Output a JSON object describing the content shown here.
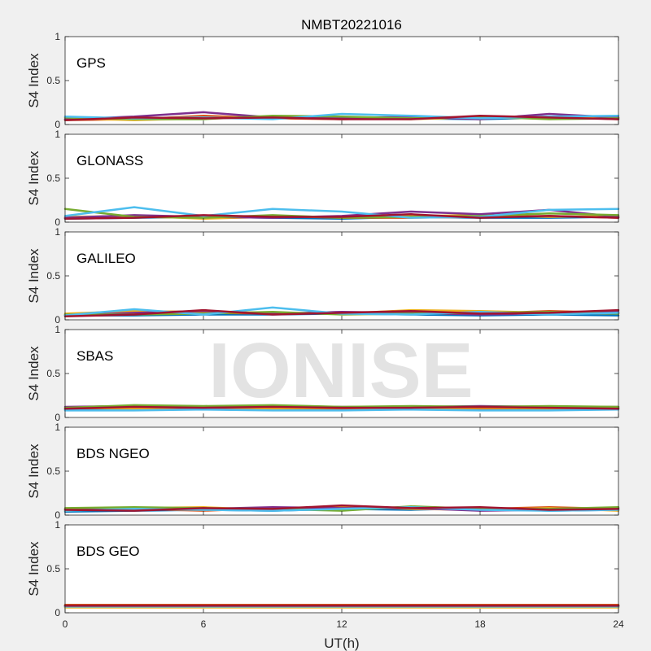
{
  "chart_data": {
    "type": "scatter",
    "title": "NMBT20221016",
    "xlabel": "UT(h)",
    "xlim": [
      0,
      24
    ],
    "xticks": [
      0,
      6,
      12,
      18,
      24
    ],
    "ylim": [
      0,
      1
    ],
    "yticks": [
      0,
      0.5,
      1
    ],
    "ylabel": "S4 Index",
    "watermark": "IONISE",
    "series_colors": [
      "#0072bd",
      "#d95319",
      "#edb120",
      "#7e2f8e",
      "#77ac30",
      "#4dbeee",
      "#a2142f"
    ],
    "panels": [
      {
        "label": "GPS",
        "ylabel": "S4 Index",
        "series": [
          {
            "x": [
              0,
              3,
              6,
              9,
              12,
              15,
              18,
              21,
              24
            ],
            "y": [
              0.06,
              0.07,
              0.08,
              0.07,
              0.08,
              0.07,
              0.06,
              0.08,
              0.07
            ]
          },
          {
            "x": [
              0,
              3,
              6,
              9,
              12,
              15,
              18,
              21,
              24
            ],
            "y": [
              0.05,
              0.06,
              0.1,
              0.07,
              0.06,
              0.08,
              0.07,
              0.09,
              0.06
            ]
          },
          {
            "x": [
              0,
              3,
              6,
              9,
              12,
              15,
              18,
              21,
              24
            ],
            "y": [
              0.07,
              0.05,
              0.07,
              0.09,
              0.07,
              0.06,
              0.08,
              0.07,
              0.08
            ]
          },
          {
            "x": [
              0,
              3,
              6,
              9,
              12,
              15,
              18,
              21,
              24
            ],
            "y": [
              0.06,
              0.09,
              0.14,
              0.08,
              0.07,
              0.09,
              0.06,
              0.12,
              0.08
            ]
          },
          {
            "x": [
              0,
              3,
              6,
              9,
              12,
              15,
              18,
              21,
              24
            ],
            "y": [
              0.08,
              0.06,
              0.06,
              0.1,
              0.09,
              0.07,
              0.09,
              0.06,
              0.07
            ]
          },
          {
            "x": [
              0,
              3,
              6,
              9,
              12,
              15,
              18,
              21,
              24
            ],
            "y": [
              0.09,
              0.07,
              0.08,
              0.06,
              0.12,
              0.1,
              0.07,
              0.09,
              0.1
            ]
          },
          {
            "x": [
              0,
              3,
              6,
              9,
              12,
              15,
              18,
              21,
              24
            ],
            "y": [
              0.05,
              0.08,
              0.07,
              0.08,
              0.06,
              0.06,
              0.1,
              0.08,
              0.06
            ]
          }
        ]
      },
      {
        "label": "GLONASS",
        "ylabel": "S4 Index",
        "series": [
          {
            "x": [
              0,
              3,
              6,
              9,
              12,
              15,
              18,
              21,
              24
            ],
            "y": [
              0.04,
              0.05,
              0.06,
              0.05,
              0.04,
              0.06,
              0.05,
              0.05,
              0.06
            ]
          },
          {
            "x": [
              0,
              3,
              6,
              9,
              12,
              15,
              18,
              21,
              24
            ],
            "y": [
              0.05,
              0.06,
              0.05,
              0.07,
              0.05,
              0.05,
              0.06,
              0.07,
              0.05
            ]
          },
          {
            "x": [
              0,
              3,
              6,
              9,
              12,
              15,
              18,
              21,
              24
            ],
            "y": [
              0.06,
              0.07,
              0.04,
              0.06,
              0.06,
              0.07,
              0.08,
              0.06,
              0.07
            ]
          },
          {
            "x": [
              0,
              3,
              6,
              9,
              12,
              15,
              18,
              21,
              24
            ],
            "y": [
              0.05,
              0.08,
              0.06,
              0.05,
              0.07,
              0.12,
              0.09,
              0.14,
              0.06
            ]
          },
          {
            "x": [
              0,
              3,
              6,
              9,
              12,
              15,
              18,
              21,
              24
            ],
            "y": [
              0.15,
              0.06,
              0.05,
              0.08,
              0.05,
              0.06,
              0.07,
              0.1,
              0.08
            ]
          },
          {
            "x": [
              0,
              3,
              6,
              9,
              12,
              15,
              18,
              21,
              24
            ],
            "y": [
              0.07,
              0.17,
              0.07,
              0.15,
              0.12,
              0.05,
              0.06,
              0.14,
              0.15
            ]
          },
          {
            "x": [
              0,
              3,
              6,
              9,
              12,
              15,
              18,
              21,
              24
            ],
            "y": [
              0.04,
              0.05,
              0.08,
              0.06,
              0.06,
              0.09,
              0.05,
              0.07,
              0.05
            ]
          }
        ]
      },
      {
        "label": "GALILEO",
        "ylabel": "S4 Index",
        "series": [
          {
            "x": [
              0,
              3,
              6,
              9,
              12,
              15,
              18,
              21,
              24
            ],
            "y": [
              0.05,
              0.05,
              0.06,
              0.06,
              0.07,
              0.06,
              0.05,
              0.06,
              0.05
            ]
          },
          {
            "x": [
              0,
              3,
              6,
              9,
              12,
              15,
              18,
              21,
              24
            ],
            "y": [
              0.06,
              0.07,
              0.08,
              0.07,
              0.08,
              0.09,
              0.07,
              0.1,
              0.08
            ]
          },
          {
            "x": [
              0,
              3,
              6,
              9,
              12,
              15,
              18,
              21,
              24
            ],
            "y": [
              0.07,
              0.1,
              0.09,
              0.08,
              0.07,
              0.11,
              0.1,
              0.08,
              0.07
            ]
          },
          {
            "x": [
              0,
              3,
              6,
              9,
              12,
              15,
              18,
              21,
              24
            ],
            "y": [
              0.05,
              0.08,
              0.1,
              0.07,
              0.09,
              0.08,
              0.06,
              0.07,
              0.09
            ]
          },
          {
            "x": [
              0,
              3,
              6,
              9,
              12,
              15,
              18,
              21,
              24
            ],
            "y": [
              0.06,
              0.06,
              0.07,
              0.09,
              0.06,
              0.07,
              0.08,
              0.09,
              0.07
            ]
          },
          {
            "x": [
              0,
              3,
              6,
              9,
              12,
              15,
              18,
              21,
              24
            ],
            "y": [
              0.05,
              0.12,
              0.06,
              0.14,
              0.07,
              0.06,
              0.09,
              0.06,
              0.08
            ]
          },
          {
            "x": [
              0,
              3,
              6,
              9,
              12,
              15,
              18,
              21,
              24
            ],
            "y": [
              0.04,
              0.06,
              0.11,
              0.06,
              0.08,
              0.1,
              0.07,
              0.08,
              0.11
            ]
          }
        ]
      },
      {
        "label": "SBAS",
        "ylabel": "S4 Index",
        "series": [
          {
            "x": [
              0,
              3,
              6,
              9,
              12,
              15,
              18,
              21,
              24
            ],
            "y": [
              0.09,
              0.1,
              0.1,
              0.09,
              0.1,
              0.09,
              0.1,
              0.09,
              0.1
            ]
          },
          {
            "x": [
              0,
              3,
              6,
              9,
              12,
              15,
              18,
              21,
              24
            ],
            "y": [
              0.1,
              0.11,
              0.1,
              0.11,
              0.1,
              0.11,
              0.1,
              0.11,
              0.1
            ]
          },
          {
            "x": [
              0,
              3,
              6,
              9,
              12,
              15,
              18,
              21,
              24
            ],
            "y": [
              0.11,
              0.1,
              0.12,
              0.1,
              0.11,
              0.1,
              0.11,
              0.1,
              0.11
            ]
          },
          {
            "x": [
              0,
              3,
              6,
              9,
              12,
              15,
              18,
              21,
              24
            ],
            "y": [
              0.12,
              0.13,
              0.12,
              0.13,
              0.12,
              0.12,
              0.13,
              0.12,
              0.12
            ]
          },
          {
            "x": [
              0,
              3,
              6,
              9,
              12,
              15,
              18,
              21,
              24
            ],
            "y": [
              0.11,
              0.14,
              0.13,
              0.14,
              0.12,
              0.13,
              0.12,
              0.13,
              0.12
            ]
          },
          {
            "x": [
              0,
              3,
              6,
              9,
              12,
              15,
              18,
              21,
              24
            ],
            "y": [
              0.08,
              0.08,
              0.09,
              0.08,
              0.08,
              0.09,
              0.08,
              0.08,
              0.09
            ]
          },
          {
            "x": [
              0,
              3,
              6,
              9,
              12,
              15,
              18,
              21,
              24
            ],
            "y": [
              0.1,
              0.12,
              0.11,
              0.12,
              0.11,
              0.11,
              0.12,
              0.11,
              0.1
            ]
          }
        ]
      },
      {
        "label": "BDS NGEO",
        "ylabel": "S4 Index",
        "series": [
          {
            "x": [
              0,
              3,
              6,
              9,
              12,
              15,
              18,
              21,
              24
            ],
            "y": [
              0.04,
              0.05,
              0.06,
              0.05,
              0.07,
              0.06,
              0.08,
              0.05,
              0.06
            ]
          },
          {
            "x": [
              0,
              3,
              6,
              9,
              12,
              15,
              18,
              21,
              24
            ],
            "y": [
              0.06,
              0.07,
              0.05,
              0.08,
              0.06,
              0.09,
              0.07,
              0.09,
              0.07
            ]
          },
          {
            "x": [
              0,
              3,
              6,
              9,
              12,
              15,
              18,
              21,
              24
            ],
            "y": [
              0.05,
              0.08,
              0.09,
              0.06,
              0.1,
              0.07,
              0.06,
              0.08,
              0.05
            ]
          },
          {
            "x": [
              0,
              3,
              6,
              9,
              12,
              15,
              18,
              21,
              24
            ],
            "y": [
              0.07,
              0.06,
              0.07,
              0.09,
              0.08,
              0.08,
              0.05,
              0.06,
              0.08
            ]
          },
          {
            "x": [
              0,
              3,
              6,
              9,
              12,
              15,
              18,
              21,
              24
            ],
            "y": [
              0.08,
              0.09,
              0.08,
              0.07,
              0.05,
              0.1,
              0.07,
              0.07,
              0.09
            ]
          },
          {
            "x": [
              0,
              3,
              6,
              9,
              12,
              15,
              18,
              21,
              24
            ],
            "y": [
              0.05,
              0.07,
              0.06,
              0.05,
              0.07,
              0.09,
              0.06,
              0.05,
              0.06
            ]
          },
          {
            "x": [
              0,
              3,
              6,
              9,
              12,
              15,
              18,
              21,
              24
            ],
            "y": [
              0.06,
              0.05,
              0.08,
              0.07,
              0.11,
              0.08,
              0.09,
              0.06,
              0.07
            ]
          }
        ]
      },
      {
        "label": "BDS GEO",
        "ylabel": "S4 Index",
        "series": [
          {
            "x": [
              0,
              3,
              6,
              9,
              12,
              15,
              18,
              21,
              24
            ],
            "y": [
              0.07,
              0.07,
              0.07,
              0.07,
              0.07,
              0.07,
              0.07,
              0.07,
              0.07
            ]
          },
          {
            "x": [
              0,
              3,
              6,
              9,
              12,
              15,
              18,
              21,
              24
            ],
            "y": [
              0.09,
              0.09,
              0.09,
              0.09,
              0.09,
              0.09,
              0.09,
              0.09,
              0.09
            ]
          },
          {
            "x": [
              0,
              3,
              6,
              9,
              12,
              15,
              18,
              21,
              24
            ],
            "y": [
              0.06,
              0.06,
              0.06,
              0.06,
              0.06,
              0.06,
              0.06,
              0.06,
              0.06
            ]
          },
          {
            "x": [
              0,
              3,
              6,
              9,
              12,
              15,
              18,
              21,
              24
            ],
            "y": [
              0.08,
              0.08,
              0.08,
              0.08,
              0.08,
              0.08,
              0.08,
              0.08,
              0.08
            ]
          },
          {
            "x": [
              0,
              3,
              6,
              9,
              12,
              15,
              18,
              21,
              24
            ],
            "y": [
              0.08,
              0.08,
              0.08,
              0.08,
              0.08,
              0.08,
              0.08,
              0.08,
              0.08
            ]
          },
          {
            "x": [
              0,
              3,
              6,
              9,
              12,
              15,
              18,
              21,
              24
            ],
            "y": [
              0.07,
              0.07,
              0.07,
              0.07,
              0.07,
              0.07,
              0.07,
              0.07,
              0.07
            ]
          },
          {
            "x": [
              0,
              3,
              6,
              9,
              12,
              15,
              18,
              21,
              24
            ],
            "y": [
              0.08,
              0.08,
              0.08,
              0.08,
              0.08,
              0.08,
              0.08,
              0.08,
              0.08
            ]
          }
        ]
      }
    ]
  }
}
